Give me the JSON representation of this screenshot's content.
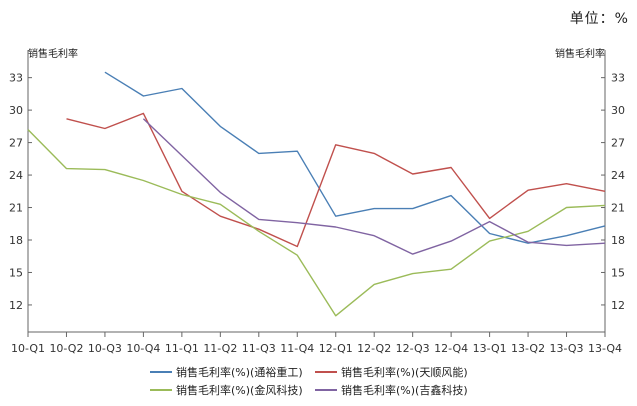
{
  "unit_label": "单位：%",
  "chart_data": {
    "type": "line",
    "ylabel_left": "销售毛利率",
    "ylabel_right": "销售毛利率",
    "ylim": [
      9.5,
      35
    ],
    "yticks": [
      12,
      15,
      18,
      21,
      24,
      27,
      30,
      33
    ],
    "categories": [
      "10-Q1",
      "10-Q2",
      "10-Q3",
      "10-Q4",
      "11-Q1",
      "11-Q2",
      "11-Q3",
      "11-Q4",
      "12-Q1",
      "12-Q2",
      "12-Q3",
      "12-Q4",
      "13-Q1",
      "13-Q2",
      "13-Q3",
      "13-Q4"
    ],
    "series": [
      {
        "name": "销售毛利率(%)(通裕重工)",
        "color": "#4a7fb5",
        "values": [
          null,
          null,
          33.5,
          31.3,
          32.0,
          28.5,
          26.0,
          26.2,
          20.2,
          20.9,
          20.9,
          22.1,
          18.6,
          17.7,
          18.4,
          19.3
        ]
      },
      {
        "name": "销售毛利率(%)(天顺风能)",
        "color": "#c0504d",
        "values": [
          null,
          29.2,
          28.3,
          29.7,
          22.5,
          20.2,
          19.0,
          17.4,
          26.8,
          26.0,
          24.1,
          24.7,
          20.0,
          22.6,
          23.2,
          22.5
        ]
      },
      {
        "name": "销售毛利率(%)(金风科技)",
        "color": "#9bbb59",
        "values": [
          28.2,
          24.6,
          24.5,
          23.5,
          22.2,
          21.3,
          18.8,
          16.6,
          11.0,
          13.9,
          14.9,
          15.3,
          17.9,
          18.8,
          21.0,
          21.2
        ]
      },
      {
        "name": "销售毛利率(%)(吉鑫科技)",
        "color": "#8064a2",
        "values": [
          null,
          null,
          null,
          29.2,
          25.8,
          22.4,
          19.9,
          19.6,
          19.2,
          18.4,
          16.7,
          17.9,
          19.7,
          17.8,
          17.5,
          17.7
        ]
      }
    ],
    "legend_position": "bottom",
    "grid": false
  }
}
